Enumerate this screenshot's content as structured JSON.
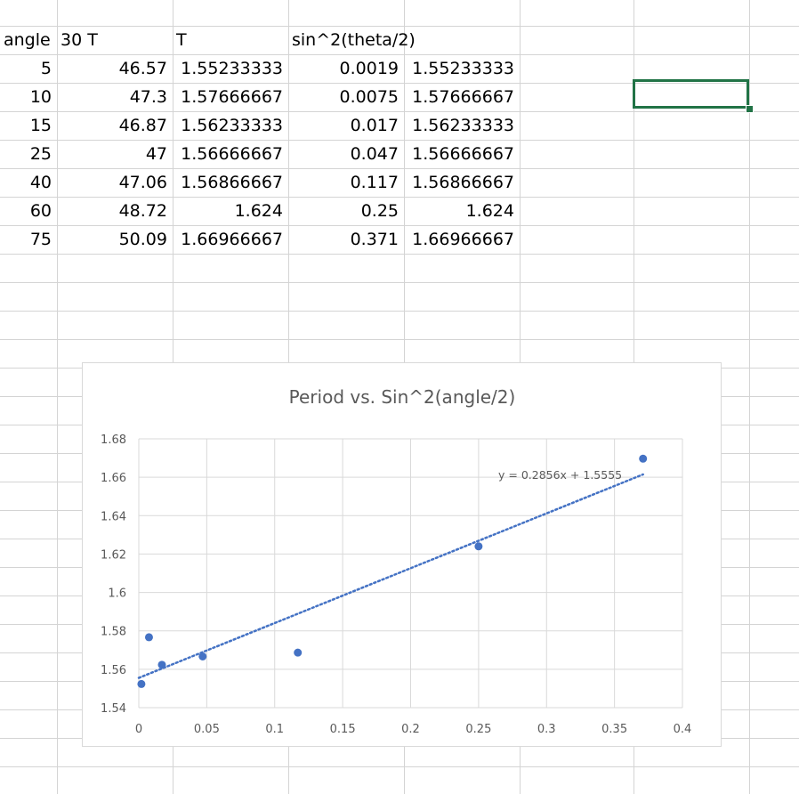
{
  "sheet": {
    "header_row": [
      "angle",
      "30 T",
      "T",
      "sin^2(theta/2)",
      ""
    ],
    "rows": [
      [
        "5",
        "46.57",
        "1.55233333",
        "0.0019",
        "1.55233333"
      ],
      [
        "10",
        "47.3",
        "1.57666667",
        "0.0075",
        "1.57666667"
      ],
      [
        "15",
        "46.87",
        "1.56233333",
        "0.017",
        "1.56233333"
      ],
      [
        "25",
        "47",
        "1.56666667",
        "0.047",
        "1.56666667"
      ],
      [
        "40",
        "47.06",
        "1.56866667",
        "0.117",
        "1.56866667"
      ],
      [
        "60",
        "48.72",
        "1.624",
        "0.25",
        "1.624"
      ],
      [
        "75",
        "50.09",
        "1.66966667",
        "0.371",
        "1.66966667"
      ]
    ],
    "selection_color": "#217346",
    "gridline_color": "#d4d4d4"
  },
  "chart_data": {
    "type": "scatter",
    "title": "Period vs. Sin^2(angle/2)",
    "xlabel": "",
    "ylabel": "",
    "xlim": [
      0,
      0.4
    ],
    "ylim": [
      1.54,
      1.68
    ],
    "x_ticks": [
      "0",
      "0.05",
      "0.1",
      "0.15",
      "0.2",
      "0.25",
      "0.3",
      "0.35",
      "0.4"
    ],
    "y_ticks": [
      "1.54",
      "1.56",
      "1.58",
      "1.6",
      "1.62",
      "1.64",
      "1.66",
      "1.68"
    ],
    "grid": true,
    "legend": "none",
    "series": [
      {
        "x": [
          0.0019,
          0.0075,
          0.017,
          0.047,
          0.117,
          0.25,
          0.371
        ],
        "y": [
          1.55233333,
          1.57666667,
          1.56233333,
          1.56666667,
          1.56866667,
          1.624,
          1.66966667
        ],
        "color": "#4472C4"
      }
    ],
    "trendline": {
      "type": "linear",
      "slope": 0.2856,
      "intercept": 1.5555,
      "x_range": [
        0,
        0.371
      ],
      "style": "dotted",
      "color": "#4472C4",
      "equation": "y = 0.2856x + 1.5555"
    }
  }
}
